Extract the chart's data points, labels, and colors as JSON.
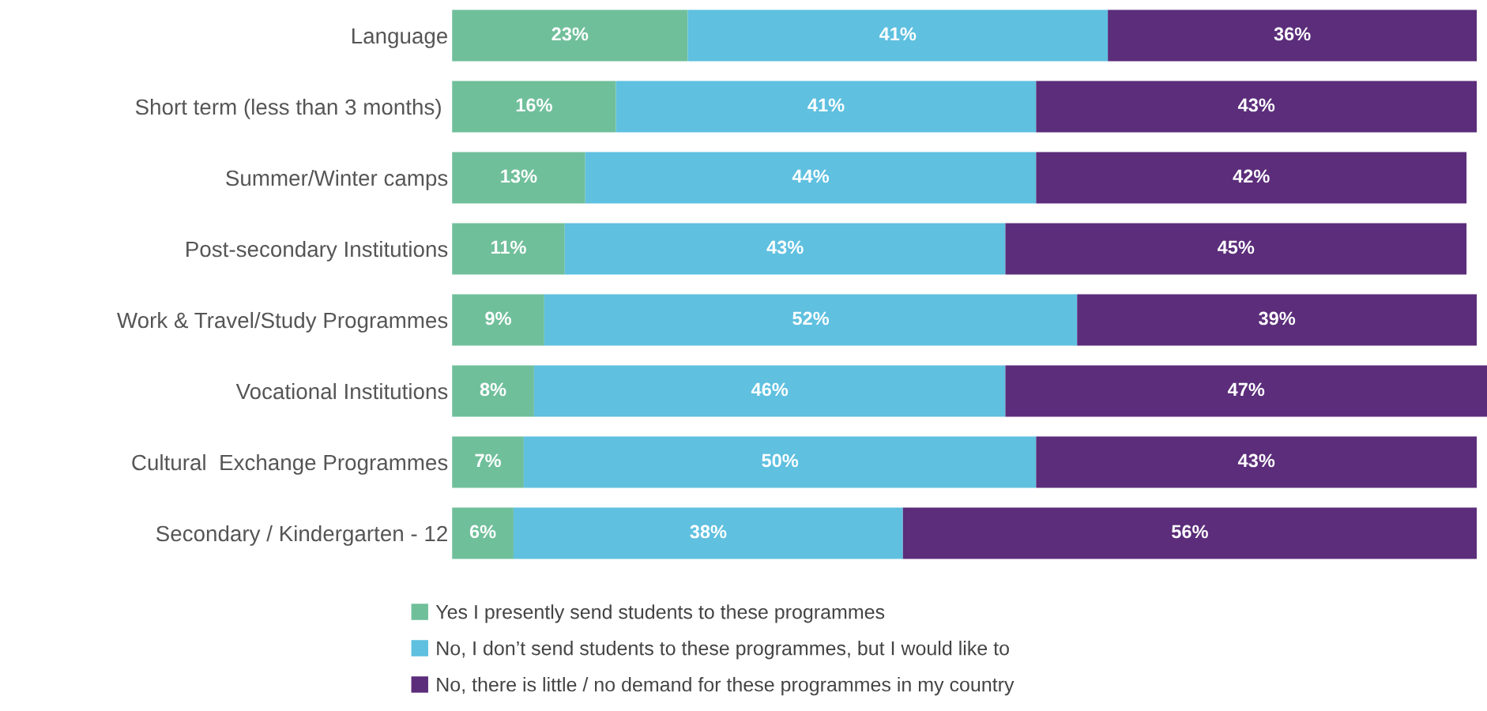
{
  "chart_data": {
    "type": "bar",
    "orientation": "horizontal",
    "stacked": true,
    "categories": [
      "Language",
      "Short term (less than 3 months) ",
      "Summer/Winter camps",
      "Post-secondary Institutions",
      "Work & Travel/Study Programmes",
      "Vocational Institutions",
      "Cultural  Exchange Programmes",
      "Secondary / Kindergarten - 12"
    ],
    "series": [
      {
        "name": "Yes I presently send students to these programmes",
        "color": "#70bf9b",
        "values": [
          23,
          16,
          13,
          11,
          9,
          8,
          7,
          6
        ],
        "value_labels": [
          "23%",
          "16%",
          "13%",
          "11%",
          "9%",
          "8%",
          "7%",
          "6%"
        ]
      },
      {
        "name": "No, I don’t send students to these programmes, but I would like to",
        "color": "#5fc0e0",
        "values": [
          41,
          41,
          44,
          43,
          52,
          46,
          50,
          38
        ],
        "value_labels": [
          "41%",
          "41%",
          "44%",
          "43%",
          "52%",
          "46%",
          "50%",
          "38%"
        ]
      },
      {
        "name": "No, there is little / no demand for these programmes in my country",
        "color": "#5b2d7a",
        "values": [
          36,
          43,
          42,
          45,
          39,
          47,
          43,
          56
        ],
        "value_labels": [
          "36%",
          "43%",
          "42%",
          "45%",
          "39%",
          "47%",
          "43%",
          "56%"
        ]
      }
    ],
    "tick_labels": "y",
    "legend": "bottom"
  }
}
